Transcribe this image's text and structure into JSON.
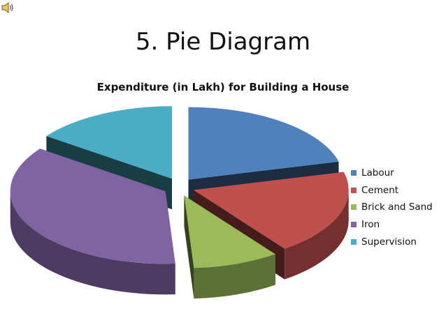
{
  "slide": {
    "title": "5. Pie Diagram"
  },
  "icons": {
    "speaker": "speaker-icon"
  },
  "chart_data": {
    "type": "pie",
    "style": "3d-exploded",
    "title": "Expenditure (in Lakh) for Building a House",
    "categories": [
      "Labour",
      "Cement",
      "Brick and Sand",
      "Iron",
      "Supervision"
    ],
    "values": [
      21,
      19,
      9,
      36,
      15
    ],
    "colors": [
      "#4F81BD",
      "#C0504D",
      "#9BBB59",
      "#8064A2",
      "#4BACC6"
    ],
    "legend_position": "right"
  }
}
